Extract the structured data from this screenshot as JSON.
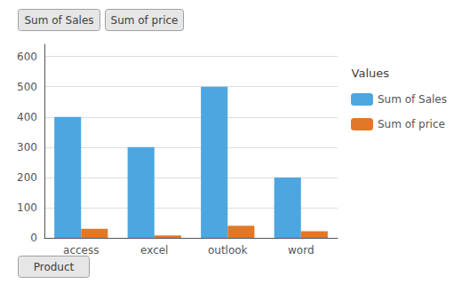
{
  "chart_data": {
    "type": "bar",
    "categories": [
      "access",
      "excel",
      "outlook",
      "word"
    ],
    "series": [
      {
        "name": "Sum of Sales",
        "color": "#4da6df",
        "values": [
          400,
          300,
          500,
          200
        ]
      },
      {
        "name": "Sum of price",
        "color": "#e07828",
        "values": [
          30,
          8,
          40,
          22
        ]
      }
    ],
    "ylim": [
      0,
      640
    ],
    "yticks": [
      0,
      100,
      200,
      300,
      400,
      500,
      600
    ],
    "grid": true,
    "legend": "right",
    "legend_title": "Values",
    "annotations": [
      "Sum of Sales",
      "Sum of price",
      "Product"
    ]
  }
}
